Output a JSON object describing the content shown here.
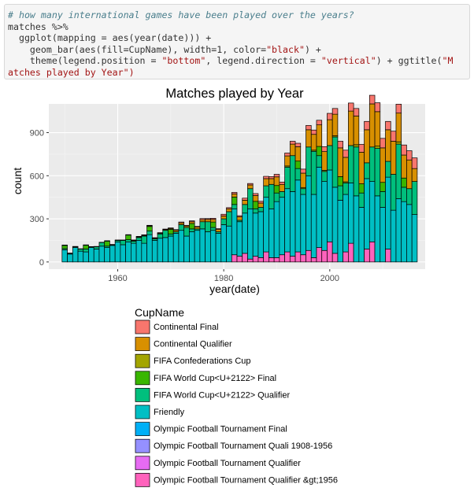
{
  "code": {
    "comment": "# how many international games have been played over the years?",
    "lines": [
      "matches %>%",
      "  ggplot(mapping = aes(year(date))) +",
      "    geom_bar(aes(fill=CupName), width=1, color=",
      "    theme(legend.position = ",
      "atches played by Year"
    ],
    "strings": [
      "\"black\"",
      "\"bottom\"",
      "\"vertical\"",
      "\"M",
      "\")"
    ],
    "line4_mid": ", legend.direction = ",
    "line4_end": ") + ggtitle(",
    "line3_end": ") +"
  },
  "chart_data": {
    "type": "bar",
    "stacked": true,
    "title": "Matches played by Year",
    "xlabel": "year(date)",
    "ylabel": "count",
    "xlim": [
      1947,
      2018
    ],
    "ylim": [
      -50,
      1100
    ],
    "xticks": [
      1960,
      1980,
      2000
    ],
    "yticks": [
      0,
      300,
      600,
      900
    ],
    "grid": true,
    "legend": {
      "title": "CupName",
      "position": "bottom",
      "direction": "vertical"
    },
    "x": [
      1950,
      1951,
      1952,
      1953,
      1954,
      1955,
      1956,
      1957,
      1958,
      1959,
      1960,
      1961,
      1962,
      1963,
      1964,
      1965,
      1966,
      1967,
      1968,
      1969,
      1970,
      1971,
      1972,
      1973,
      1974,
      1975,
      1976,
      1977,
      1978,
      1979,
      1980,
      1981,
      1982,
      1983,
      1984,
      1985,
      1986,
      1987,
      1988,
      1989,
      1990,
      1991,
      1992,
      1993,
      1994,
      1995,
      1996,
      1997,
      1998,
      1999,
      2000,
      2001,
      2002,
      2003,
      2004,
      2005,
      2006,
      2007,
      2008,
      2009,
      2010,
      2011,
      2012,
      2013,
      2014,
      2015,
      2016
    ],
    "series": [
      {
        "name": "Continental Final",
        "color": "#F8766D",
        "values": [
          3,
          2,
          3,
          2,
          3,
          2,
          3,
          2,
          3,
          2,
          3,
          3,
          3,
          3,
          3,
          4,
          3,
          4,
          4,
          4,
          4,
          5,
          6,
          5,
          6,
          6,
          8,
          6,
          8,
          6,
          12,
          8,
          10,
          8,
          14,
          10,
          14,
          12,
          16,
          14,
          18,
          16,
          20,
          20,
          24,
          28,
          30,
          30,
          32,
          34,
          44,
          40,
          46,
          50,
          56,
          52,
          54,
          58,
          60,
          62,
          66,
          58,
          70,
          62,
          70,
          64,
          74
        ]
      },
      {
        "name": "Continental Qualifier",
        "color": "#D89000",
        "values": [
          0,
          0,
          0,
          0,
          0,
          0,
          0,
          0,
          0,
          0,
          0,
          0,
          0,
          5,
          5,
          5,
          5,
          5,
          5,
          5,
          6,
          10,
          12,
          10,
          12,
          12,
          14,
          16,
          18,
          16,
          20,
          20,
          22,
          24,
          30,
          26,
          40,
          30,
          50,
          40,
          60,
          50,
          70,
          80,
          100,
          100,
          120,
          110,
          150,
          130,
          180,
          150,
          200,
          170,
          240,
          200,
          220,
          230,
          300,
          240,
          240,
          220,
          230,
          200,
          160,
          200,
          90
        ]
      },
      {
        "name": "FIFA Confederations Cup",
        "color": "#A3A500",
        "values": [
          0,
          0,
          0,
          0,
          0,
          0,
          0,
          0,
          0,
          0,
          0,
          0,
          0,
          0,
          0,
          0,
          0,
          0,
          0,
          0,
          0,
          0,
          0,
          0,
          0,
          0,
          0,
          0,
          0,
          0,
          0,
          0,
          0,
          0,
          0,
          0,
          0,
          0,
          0,
          0,
          0,
          0,
          8,
          0,
          0,
          8,
          0,
          8,
          0,
          8,
          0,
          8,
          0,
          8,
          0,
          16,
          0,
          0,
          0,
          16,
          0,
          0,
          0,
          16,
          0,
          0,
          0
        ]
      },
      {
        "name": "FIFA World Cup™ Final",
        "color": "#39B600",
        "values": [
          22,
          0,
          0,
          0,
          26,
          0,
          0,
          0,
          35,
          0,
          0,
          0,
          32,
          0,
          0,
          0,
          32,
          0,
          0,
          0,
          32,
          0,
          0,
          0,
          38,
          0,
          0,
          0,
          38,
          0,
          0,
          0,
          52,
          0,
          0,
          0,
          52,
          0,
          0,
          0,
          52,
          0,
          0,
          0,
          52,
          0,
          0,
          0,
          64,
          0,
          0,
          0,
          64,
          0,
          0,
          0,
          64,
          0,
          0,
          0,
          64,
          0,
          0,
          0,
          64,
          0,
          0
        ]
      },
      {
        "name": "FIFA World Cup™ Qualifier",
        "color": "#00BF7D",
        "values": [
          8,
          5,
          5,
          15,
          20,
          5,
          15,
          25,
          10,
          5,
          10,
          30,
          15,
          15,
          20,
          50,
          25,
          10,
          30,
          50,
          15,
          10,
          40,
          60,
          20,
          10,
          50,
          70,
          20,
          10,
          40,
          100,
          30,
          10,
          60,
          140,
          30,
          30,
          80,
          170,
          60,
          40,
          150,
          250,
          80,
          40,
          200,
          300,
          80,
          70,
          170,
          350,
          100,
          80,
          260,
          340,
          100,
          110,
          240,
          330,
          110,
          110,
          250,
          380,
          100,
          110,
          230
        ]
      },
      {
        "name": "Friendly",
        "color": "#00BFC4",
        "values": [
          85,
          55,
          100,
          75,
          70,
          100,
          90,
          110,
          100,
          115,
          140,
          120,
          140,
          130,
          150,
          130,
          190,
          150,
          165,
          170,
          180,
          200,
          220,
          180,
          210,
          220,
          230,
          210,
          220,
          200,
          260,
          250,
          320,
          240,
          280,
          350,
          300,
          320,
          380,
          340,
          390,
          400,
          440,
          450,
          500,
          420,
          520,
          440,
          560,
          480,
          500,
          460,
          430,
          400,
          420,
          460,
          380,
          490,
          420,
          460,
          380,
          500,
          360,
          440,
          420,
          400,
          330
        ]
      },
      {
        "name": "Olympic Football Tournament Final",
        "color": "#00B0F6",
        "values": [
          0,
          0,
          0,
          0,
          0,
          0,
          0,
          0,
          0,
          0,
          0,
          0,
          0,
          0,
          0,
          0,
          0,
          0,
          0,
          0,
          0,
          0,
          0,
          0,
          0,
          0,
          0,
          0,
          0,
          0,
          0,
          0,
          0,
          0,
          0,
          0,
          0,
          0,
          0,
          0,
          0,
          0,
          0,
          0,
          0,
          0,
          0,
          0,
          0,
          0,
          0,
          0,
          0,
          0,
          0,
          0,
          0,
          0,
          0,
          0,
          0,
          0,
          0,
          0,
          0,
          0,
          0
        ]
      },
      {
        "name": "Olympic Football Tournament Quali 1908-1956",
        "color": "#9590FF",
        "values": [
          0,
          0,
          0,
          0,
          0,
          0,
          0,
          0,
          0,
          0,
          0,
          0,
          0,
          0,
          0,
          0,
          0,
          0,
          0,
          0,
          0,
          0,
          0,
          0,
          0,
          0,
          0,
          0,
          0,
          0,
          0,
          0,
          0,
          0,
          0,
          0,
          0,
          0,
          0,
          0,
          0,
          0,
          0,
          0,
          0,
          0,
          0,
          0,
          0,
          0,
          0,
          0,
          0,
          0,
          0,
          0,
          0,
          0,
          0,
          0,
          0,
          0,
          0,
          0,
          0,
          0,
          0
        ]
      },
      {
        "name": "Olympic Football Tournament Qualifier",
        "color": "#E76BF3",
        "values": [
          0,
          0,
          0,
          0,
          0,
          0,
          0,
          0,
          0,
          0,
          0,
          0,
          0,
          0,
          0,
          0,
          0,
          0,
          0,
          0,
          0,
          0,
          0,
          0,
          0,
          0,
          0,
          0,
          0,
          0,
          0,
          0,
          0,
          0,
          0,
          0,
          0,
          0,
          0,
          0,
          0,
          0,
          0,
          0,
          0,
          0,
          0,
          0,
          0,
          0,
          0,
          0,
          0,
          0,
          0,
          0,
          0,
          0,
          0,
          0,
          0,
          0,
          0,
          0,
          0,
          0,
          0
        ]
      },
      {
        "name": "Olympic Football Tournament Qualifier &gt;1956",
        "color": "#FF62BC",
        "values": [
          0,
          0,
          0,
          0,
          0,
          0,
          0,
          0,
          0,
          0,
          0,
          0,
          0,
          0,
          0,
          0,
          0,
          0,
          0,
          0,
          0,
          0,
          0,
          0,
          0,
          0,
          0,
          0,
          0,
          0,
          0,
          0,
          50,
          40,
          60,
          20,
          40,
          30,
          70,
          30,
          30,
          50,
          70,
          40,
          70,
          50,
          80,
          30,
          100,
          80,
          140,
          60,
          0,
          70,
          130,
          0,
          0,
          90,
          140,
          0,
          0,
          90,
          0,
          0,
          0,
          0,
          0
        ]
      }
    ],
    "legend_labels": [
      "Continental Final",
      "Continental Qualifier",
      "FIFA Confederations Cup",
      "FIFA World Cup<U+2122> Final",
      "FIFA World Cup<U+2122> Qualifier",
      "Friendly",
      "Olympic Football Tournament Final",
      "Olympic Football Tournament Quali 1908-1956",
      "Olympic Football Tournament Qualifier",
      "Olympic Football Tournament Qualifier &gt;1956"
    ]
  }
}
